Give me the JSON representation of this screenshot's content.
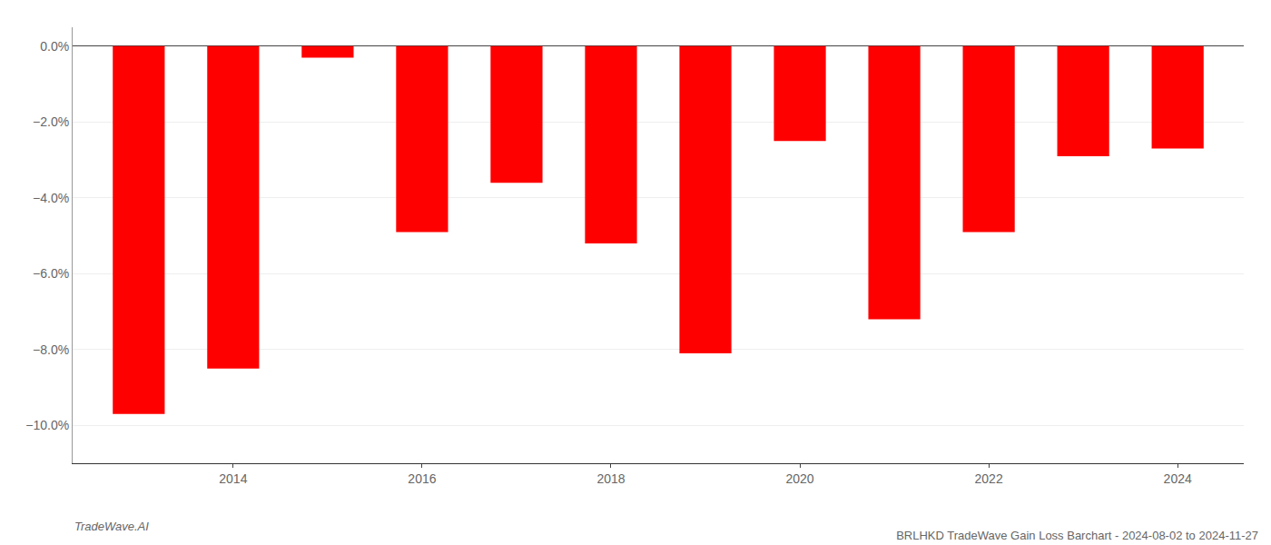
{
  "chart_data": {
    "type": "bar",
    "title": "BRLHKD TradeWave Gain Loss Barchart - 2024-08-02 to 2024-11-27",
    "annotations": [
      "TradeWave.AI"
    ],
    "categories": [
      null,
      "2014",
      null,
      "2016",
      null,
      "2018",
      null,
      "2020",
      null,
      "2022",
      null,
      "2024"
    ],
    "values": [
      -9.7,
      -8.5,
      -0.3,
      -4.9,
      -3.6,
      -5.2,
      -8.1,
      -2.5,
      -7.2,
      -4.9,
      -2.9,
      -2.7
    ],
    "color": "#ff0000",
    "ylim": [
      -11.0,
      0.5
    ],
    "yticks": [
      {
        "value": 0.0,
        "label": "0.0%"
      },
      {
        "value": -2.0,
        "label": "−2.0%"
      },
      {
        "value": -4.0,
        "label": "−4.0%"
      },
      {
        "value": -6.0,
        "label": "−6.0%"
      },
      {
        "value": -8.0,
        "label": "−8.0%"
      },
      {
        "value": -10.0,
        "label": "−10.0%"
      }
    ],
    "grid": true
  }
}
